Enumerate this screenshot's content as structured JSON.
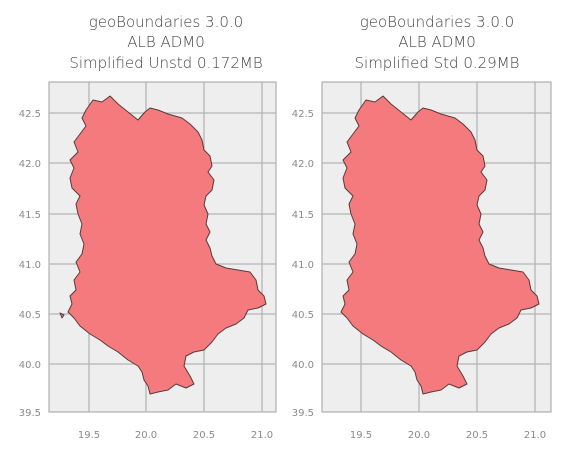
{
  "maps": [
    {
      "title_lines": [
        "geoBoundaries 3.0.0",
        "ALB ADM0",
        "Simplified Unstd 0.172MB"
      ],
      "x_ticks": [
        "19.5",
        "20.0",
        "20.5",
        "21.0"
      ],
      "y_ticks": [
        "42.5",
        "42.0",
        "41.5",
        "41.0",
        "40.5",
        "40.0",
        "39.5"
      ]
    },
    {
      "title_lines": [
        "geoBoundaries 3.0.0",
        "ALB ADM0",
        "Simplified Std 0.29MB"
      ],
      "x_ticks": [
        "19.5",
        "20.0",
        "20.5",
        "21.0"
      ],
      "y_ticks": [
        "42.5",
        "42.0",
        "41.5",
        "41.0",
        "40.5",
        "40.0",
        "39.5"
      ]
    }
  ],
  "colors": {
    "fill": "#f47a7d",
    "edge": "#5a3a3a",
    "background": "#eeeeee",
    "grid": "#b5b5b5"
  }
}
